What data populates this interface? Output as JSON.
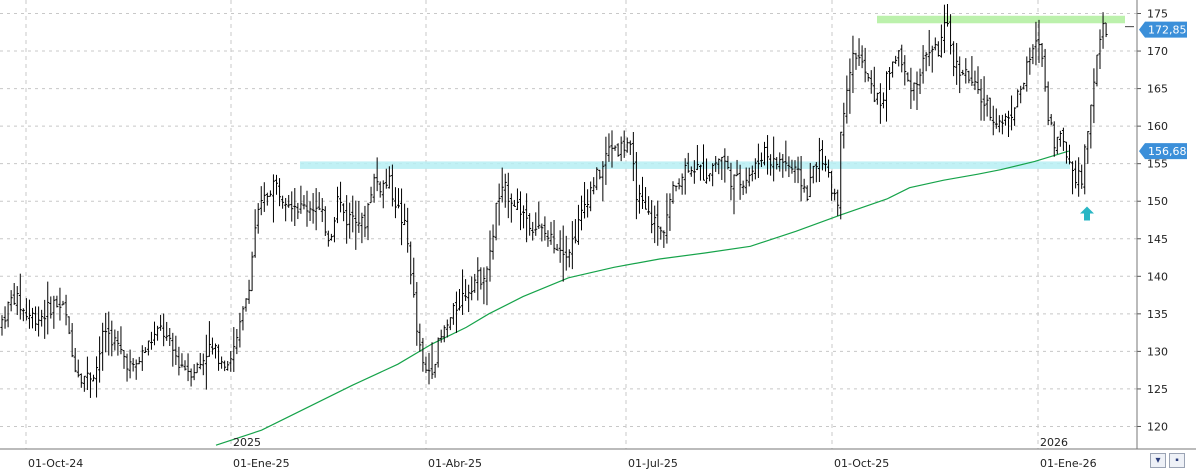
{
  "chart_data": {
    "type": "ohlc",
    "price_axis": {
      "min": 117,
      "max": 176,
      "ticks": [
        120,
        125,
        130,
        135,
        140,
        145,
        150,
        155,
        160,
        165,
        170,
        175
      ]
    },
    "date_labels": [
      "01-Oct-24",
      "01-Ene-25",
      "01-Abr-25",
      "01-Jul-25",
      "01-Oct-25",
      "01-Ene-26"
    ],
    "year_labels": [
      "2025",
      "2026"
    ],
    "last_price_label": "172,85",
    "ma_price_label": "156,68",
    "last_price": 172.85,
    "ma_price": 156.68,
    "resistance_zone": {
      "upper": 155.3,
      "lower": 154.3
    },
    "top_zone": {
      "upper": 174.7,
      "lower": 173.7
    },
    "colors": {
      "bars": "#000000",
      "ma_line": "#16a34a",
      "badge": "#3b8fd9",
      "zone": "#b6eef3",
      "top_zone": "#b8f0a8",
      "arrow": "#29b6c4",
      "grid": "#c8c8c8"
    },
    "moving_average": [
      [
        0.19,
        117.5
      ],
      [
        0.23,
        119.5
      ],
      [
        0.27,
        122.5
      ],
      [
        0.31,
        125.5
      ],
      [
        0.35,
        128.3
      ],
      [
        0.38,
        131.0
      ],
      [
        0.41,
        133.2
      ],
      [
        0.43,
        135.0
      ],
      [
        0.46,
        137.3
      ],
      [
        0.5,
        139.8
      ],
      [
        0.54,
        141.2
      ],
      [
        0.58,
        142.3
      ],
      [
        0.62,
        143.1
      ],
      [
        0.66,
        144.0
      ],
      [
        0.7,
        146.0
      ],
      [
        0.74,
        148.2
      ],
      [
        0.78,
        150.3
      ],
      [
        0.8,
        151.8
      ],
      [
        0.83,
        152.8
      ],
      [
        0.86,
        153.6
      ],
      [
        0.88,
        154.2
      ],
      [
        0.91,
        155.3
      ],
      [
        0.94,
        156.68
      ]
    ],
    "price_path": [
      [
        0.0,
        133.5
      ],
      [
        0.012,
        137.5
      ],
      [
        0.022,
        135.0
      ],
      [
        0.035,
        134.5
      ],
      [
        0.048,
        136.5
      ],
      [
        0.057,
        135.5
      ],
      [
        0.063,
        129.5
      ],
      [
        0.07,
        127.0
      ],
      [
        0.078,
        126.5
      ],
      [
        0.085,
        128.0
      ],
      [
        0.092,
        133.0
      ],
      [
        0.1,
        131.5
      ],
      [
        0.108,
        129.5
      ],
      [
        0.117,
        127.5
      ],
      [
        0.125,
        129.5
      ],
      [
        0.133,
        131.5
      ],
      [
        0.142,
        133.0
      ],
      [
        0.15,
        130.5
      ],
      [
        0.158,
        128.5
      ],
      [
        0.167,
        127.5
      ],
      [
        0.175,
        128.0
      ],
      [
        0.183,
        130.5
      ],
      [
        0.192,
        129.5
      ],
      [
        0.2,
        128.5
      ],
      [
        0.208,
        131.0
      ],
      [
        0.215,
        136.0
      ],
      [
        0.22,
        140.0
      ],
      [
        0.225,
        147.5
      ],
      [
        0.232,
        150.0
      ],
      [
        0.24,
        152.5
      ],
      [
        0.248,
        151.0
      ],
      [
        0.257,
        150.0
      ],
      [
        0.265,
        149.0
      ],
      [
        0.275,
        149.5
      ],
      [
        0.283,
        148.0
      ],
      [
        0.29,
        145.0
      ],
      [
        0.297,
        150.5
      ],
      [
        0.305,
        147.5
      ],
      [
        0.312,
        148.5
      ],
      [
        0.32,
        146.5
      ],
      [
        0.328,
        153.0
      ],
      [
        0.335,
        152.0
      ],
      [
        0.342,
        152.5
      ],
      [
        0.35,
        149.0
      ],
      [
        0.357,
        146.0
      ],
      [
        0.362,
        140.0
      ],
      [
        0.367,
        132.0
      ],
      [
        0.373,
        127.0
      ],
      [
        0.38,
        128.0
      ],
      [
        0.386,
        131.0
      ],
      [
        0.392,
        133.0
      ],
      [
        0.397,
        134.5
      ],
      [
        0.403,
        136.5
      ],
      [
        0.41,
        138.0
      ],
      [
        0.417,
        139.5
      ],
      [
        0.423,
        140.0
      ],
      [
        0.43,
        141.5
      ],
      [
        0.437,
        150.0
      ],
      [
        0.444,
        151.5
      ],
      [
        0.452,
        150.0
      ],
      [
        0.46,
        148.5
      ],
      [
        0.468,
        147.0
      ],
      [
        0.476,
        146.0
      ],
      [
        0.484,
        145.0
      ],
      [
        0.492,
        144.0
      ],
      [
        0.5,
        143.5
      ],
      [
        0.507,
        146.0
      ],
      [
        0.515,
        150.0
      ],
      [
        0.522,
        152.5
      ],
      [
        0.53,
        154.5
      ],
      [
        0.537,
        157.5
      ],
      [
        0.545,
        157.0
      ],
      [
        0.553,
        158.0
      ],
      [
        0.56,
        151.0
      ],
      [
        0.567,
        148.5
      ],
      [
        0.575,
        147.5
      ],
      [
        0.582,
        145.5
      ],
      [
        0.59,
        150.5
      ],
      [
        0.597,
        153.0
      ],
      [
        0.605,
        155.0
      ],
      [
        0.612,
        154.5
      ],
      [
        0.62,
        153.5
      ],
      [
        0.628,
        155.0
      ],
      [
        0.635,
        156.0
      ],
      [
        0.643,
        153.0
      ],
      [
        0.65,
        152.5
      ],
      [
        0.658,
        153.5
      ],
      [
        0.665,
        154.5
      ],
      [
        0.672,
        157.0
      ],
      [
        0.68,
        155.0
      ],
      [
        0.688,
        155.5
      ],
      [
        0.695,
        154.5
      ],
      [
        0.703,
        153.0
      ],
      [
        0.71,
        151.0
      ],
      [
        0.717,
        155.5
      ],
      [
        0.723,
        156.0
      ],
      [
        0.73,
        152.0
      ],
      [
        0.737,
        150.5
      ],
      [
        0.74,
        160.0
      ],
      [
        0.745,
        166.0
      ],
      [
        0.752,
        170.0
      ],
      [
        0.76,
        167.5
      ],
      [
        0.767,
        164.5
      ],
      [
        0.775,
        163.0
      ],
      [
        0.782,
        167.5
      ],
      [
        0.79,
        170.0
      ],
      [
        0.797,
        166.0
      ],
      [
        0.805,
        165.5
      ],
      [
        0.812,
        168.5
      ],
      [
        0.818,
        170.5
      ],
      [
        0.825,
        170.0
      ],
      [
        0.832,
        173.5
      ],
      [
        0.84,
        168.0
      ],
      [
        0.847,
        167.5
      ],
      [
        0.855,
        165.5
      ],
      [
        0.862,
        164.0
      ],
      [
        0.87,
        162.0
      ],
      [
        0.878,
        160.5
      ],
      [
        0.886,
        161.0
      ],
      [
        0.893,
        163.0
      ],
      [
        0.9,
        166.0
      ],
      [
        0.908,
        170.0
      ],
      [
        0.915,
        171.5
      ],
      [
        0.921,
        162.5
      ],
      [
        0.927,
        158.0
      ],
      [
        0.933,
        158.5
      ],
      [
        0.94,
        155.5
      ],
      [
        0.946,
        153.5
      ],
      [
        0.951,
        152.5
      ],
      [
        0.956,
        158.5
      ],
      [
        0.961,
        165.5
      ],
      [
        0.966,
        170.0
      ],
      [
        0.97,
        173.0
      ],
      [
        0.974,
        172.85
      ]
    ]
  }
}
